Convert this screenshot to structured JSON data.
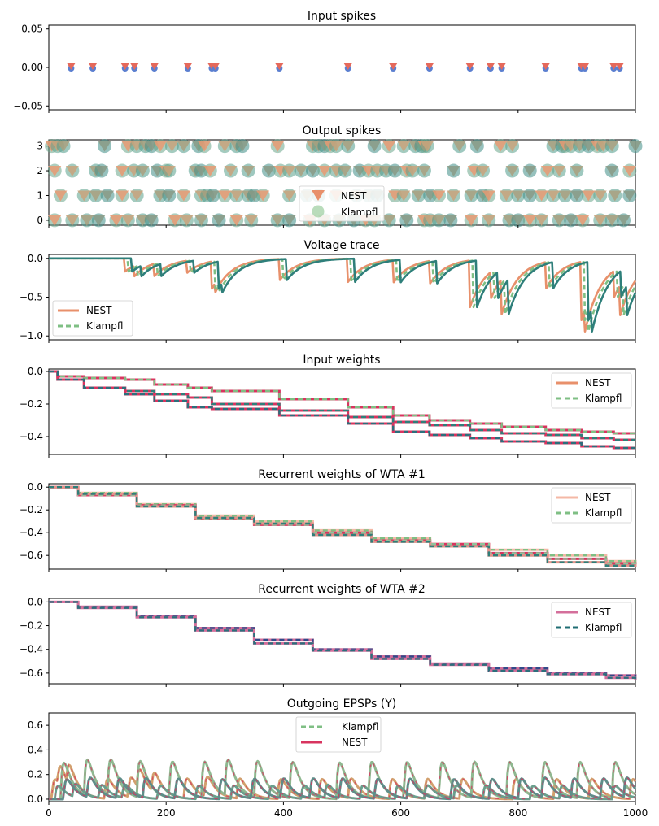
{
  "x_range": [
    0,
    1000
  ],
  "x_ticks": [
    0,
    200,
    400,
    600,
    800,
    1000
  ],
  "colors": {
    "nest_orange": "#e8906b",
    "klampfl_green": "#7fbf84",
    "teal": "#2e7f7a",
    "dark_teal": "#2b6f7c",
    "spike_red": "#e5695b",
    "spike_blue": "#5b7fd0",
    "pink": "#f4b8a6",
    "mauve": "#d46f9b",
    "crimson": "#d8345f",
    "navy": "#304a8a",
    "sage": "#8fc49b"
  },
  "chart_data": [
    {
      "id": "input_spikes",
      "type": "scatter",
      "title": "Input spikes",
      "ylim": [
        -0.055,
        0.055
      ],
      "yticks": [
        0.05,
        0.0,
        -0.05
      ],
      "ytick_labels": [
        "0.05",
        "0.00",
        "−0.05"
      ],
      "series": [
        {
          "x": [
            38,
            75,
            130,
            146,
            180,
            237,
            278,
            284,
            393,
            510,
            587,
            649,
            718,
            753,
            772,
            847,
            908,
            914,
            963,
            973
          ],
          "y": 0
        }
      ]
    },
    {
      "id": "output_spikes",
      "type": "scatter",
      "title": "Output spikes",
      "ylim": [
        -0.2,
        3.25
      ],
      "yticks": [
        3,
        2,
        1,
        0
      ],
      "ytick_labels": [
        "3",
        "2",
        "1",
        "0"
      ],
      "legend": {
        "entries": [
          "NEST",
          "Klampfl"
        ],
        "placement": "center"
      },
      "rows": [
        {
          "unit": 3,
          "x": [
            5,
            15,
            25,
            95,
            135,
            150,
            165,
            175,
            190,
            210,
            230,
            255,
            265,
            300,
            320,
            330,
            390,
            450,
            460,
            470,
            480,
            490,
            510,
            555,
            580,
            605,
            625,
            635,
            640,
            645,
            700,
            730,
            770,
            790,
            860,
            875,
            880,
            890,
            905,
            920,
            935,
            945,
            960,
            1000
          ]
        },
        {
          "unit": 2,
          "x": [
            10,
            40,
            80,
            90,
            125,
            145,
            160,
            185,
            200,
            205,
            250,
            260,
            275,
            310,
            340,
            375,
            395,
            410,
            430,
            450,
            470,
            490,
            505,
            530,
            545,
            560,
            575,
            590,
            610,
            620,
            640,
            690,
            725,
            740,
            790,
            820,
            850,
            870,
            900,
            960,
            990
          ]
        },
        {
          "unit": 1,
          "x": [
            20,
            60,
            80,
            100,
            125,
            150,
            190,
            205,
            230,
            260,
            270,
            280,
            300,
            320,
            340,
            350,
            365,
            410,
            440,
            460,
            490,
            525,
            545,
            560,
            590,
            605,
            630,
            650,
            665,
            690,
            720,
            740,
            750,
            780,
            800,
            820,
            840,
            860,
            880,
            900,
            920,
            940,
            965,
            990
          ]
        },
        {
          "unit": 0,
          "x": [
            10,
            40,
            65,
            85,
            115,
            135,
            160,
            175,
            215,
            235,
            260,
            290,
            320,
            345,
            390,
            410,
            445,
            470,
            495,
            520,
            540,
            555,
            580,
            610,
            640,
            650,
            665,
            685,
            720,
            750,
            785,
            800,
            820,
            840,
            870,
            890,
            910,
            940,
            960,
            980
          ]
        }
      ]
    },
    {
      "id": "voltage_trace",
      "type": "line",
      "title": "Voltage trace",
      "ylim": [
        -1.05,
        0.05
      ],
      "yticks": [
        0.0,
        -0.5,
        -1.0
      ],
      "ytick_labels": [
        "0.0",
        "−0.5",
        "−1.0"
      ],
      "legend": {
        "entries": [
          "NEST",
          "Klampfl"
        ],
        "placement": "lower-left"
      },
      "events": [
        {
          "x": 130,
          "a": -0.17
        },
        {
          "x": 145,
          "a": -0.14
        },
        {
          "x": 180,
          "a": -0.16
        },
        {
          "x": 235,
          "a": -0.16
        },
        {
          "x": 278,
          "a": -0.35
        },
        {
          "x": 284,
          "a": -0.12
        },
        {
          "x": 393,
          "a": -0.28
        },
        {
          "x": 510,
          "a": -0.3
        },
        {
          "x": 587,
          "a": -0.3
        },
        {
          "x": 649,
          "a": -0.3
        },
        {
          "x": 718,
          "a": -0.6
        },
        {
          "x": 753,
          "a": -0.35
        },
        {
          "x": 772,
          "a": -0.45
        },
        {
          "x": 847,
          "a": -0.35
        },
        {
          "x": 908,
          "a": -0.75
        },
        {
          "x": 914,
          "a": -0.3
        },
        {
          "x": 963,
          "a": -0.35
        },
        {
          "x": 973,
          "a": -0.4
        }
      ],
      "series_offsets": [
        0,
        6,
        12
      ]
    },
    {
      "id": "input_weights",
      "type": "line",
      "title": "Input weights",
      "ylim": [
        -0.51,
        0.015
      ],
      "yticks": [
        0.0,
        -0.2,
        -0.4
      ],
      "ytick_labels": [
        "0.0",
        "−0.2",
        "−0.4"
      ],
      "legend": {
        "entries": [
          "NEST",
          "Klampfl"
        ],
        "placement": "upper-right"
      },
      "series": [
        {
          "name": "w1",
          "x": [
            0,
            15,
            60,
            130,
            180,
            237,
            278,
            393,
            510,
            587,
            649,
            718,
            772,
            847,
            908,
            963,
            1000
          ],
          "y": [
            0,
            -0.03,
            -0.04,
            -0.05,
            -0.08,
            -0.1,
            -0.12,
            -0.17,
            -0.22,
            -0.27,
            -0.3,
            -0.32,
            -0.34,
            -0.36,
            -0.37,
            -0.38,
            -0.38
          ]
        },
        {
          "name": "w2",
          "x": [
            0,
            15,
            60,
            130,
            180,
            237,
            278,
            393,
            510,
            587,
            649,
            718,
            772,
            847,
            908,
            963,
            1000
          ],
          "y": [
            0,
            -0.05,
            -0.1,
            -0.12,
            -0.14,
            -0.16,
            -0.2,
            -0.24,
            -0.28,
            -0.31,
            -0.33,
            -0.36,
            -0.38,
            -0.39,
            -0.41,
            -0.42,
            -0.42
          ]
        },
        {
          "name": "w3",
          "x": [
            0,
            15,
            60,
            130,
            180,
            237,
            278,
            393,
            510,
            587,
            649,
            718,
            772,
            847,
            908,
            963,
            1000
          ],
          "y": [
            0,
            -0.05,
            -0.1,
            -0.14,
            -0.18,
            -0.22,
            -0.23,
            -0.27,
            -0.32,
            -0.37,
            -0.39,
            -0.41,
            -0.43,
            -0.44,
            -0.46,
            -0.47,
            -0.47
          ]
        }
      ]
    },
    {
      "id": "recurrent_weights_wta1",
      "type": "line",
      "title": "Recurrent weights of WTA #1",
      "ylim": [
        -0.72,
        0.03
      ],
      "yticks": [
        0.0,
        -0.2,
        -0.4,
        -0.6
      ],
      "ytick_labels": [
        "0.0",
        "−0.2",
        "−0.4",
        "−0.6"
      ],
      "legend": {
        "entries": [
          "NEST",
          "Klampfl"
        ],
        "placement": "upper-right"
      },
      "series": [
        {
          "name": "a",
          "x": [
            0,
            50,
            150,
            250,
            350,
            450,
            550,
            650,
            750,
            850,
            950,
            1000
          ],
          "y": [
            0,
            -0.05,
            -0.15,
            -0.25,
            -0.3,
            -0.38,
            -0.45,
            -0.5,
            -0.55,
            -0.6,
            -0.65,
            -0.66
          ]
        },
        {
          "name": "b",
          "x": [
            0,
            50,
            150,
            250,
            350,
            450,
            550,
            650,
            750,
            850,
            950,
            1000
          ],
          "y": [
            0,
            -0.07,
            -0.16,
            -0.28,
            -0.33,
            -0.4,
            -0.47,
            -0.5,
            -0.58,
            -0.63,
            -0.67,
            -0.68
          ]
        },
        {
          "name": "c",
          "x": [
            0,
            50,
            150,
            250,
            350,
            450,
            550,
            650,
            750,
            850,
            950,
            1000
          ],
          "y": [
            0,
            -0.06,
            -0.17,
            -0.27,
            -0.32,
            -0.42,
            -0.48,
            -0.52,
            -0.6,
            -0.66,
            -0.69,
            -0.7
          ]
        }
      ]
    },
    {
      "id": "recurrent_weights_wta2",
      "type": "line",
      "title": "Recurrent weights of WTA #2",
      "ylim": [
        -0.69,
        0.03
      ],
      "yticks": [
        0.0,
        -0.2,
        -0.4,
        -0.6
      ],
      "ytick_labels": [
        "0.0",
        "−0.2",
        "−0.4",
        "−0.6"
      ],
      "legend": {
        "entries": [
          "NEST",
          "Klampfl"
        ],
        "placement": "upper-right"
      },
      "series": [
        {
          "name": "a",
          "x": [
            0,
            50,
            150,
            250,
            350,
            450,
            550,
            650,
            750,
            850,
            950,
            1000
          ],
          "y": [
            0,
            -0.04,
            -0.12,
            -0.22,
            -0.32,
            -0.4,
            -0.46,
            -0.52,
            -0.56,
            -0.6,
            -0.62,
            -0.63
          ]
        },
        {
          "name": "b",
          "x": [
            0,
            50,
            150,
            250,
            350,
            450,
            550,
            650,
            750,
            850,
            950,
            1000
          ],
          "y": [
            0,
            -0.05,
            -0.13,
            -0.24,
            -0.35,
            -0.41,
            -0.48,
            -0.53,
            -0.58,
            -0.61,
            -0.64,
            -0.66
          ]
        }
      ]
    },
    {
      "id": "outgoing_epsps",
      "type": "line",
      "title": "Outgoing EPSPs (Y)",
      "ylim": [
        -0.02,
        0.7
      ],
      "yticks": [
        0.6,
        0.4,
        0.2,
        0.0
      ],
      "ytick_labels": [
        "0.6",
        "0.4",
        "0.2",
        "0.0"
      ],
      "legend": {
        "entries": [
          "Klampfl",
          "NEST"
        ],
        "placement": "upper-center"
      },
      "spike_times": [
        [
          5,
          15,
          30,
          95,
          135,
          150,
          175,
          230,
          265,
          320,
          390,
          460,
          510,
          580,
          640,
          700,
          790,
          860,
          920,
          990
        ],
        [
          20,
          60,
          100,
          150,
          205,
          260,
          300,
          350,
          410,
          490,
          545,
          605,
          665,
          720,
          780,
          840,
          900,
          960
        ],
        [
          10,
          40,
          85,
          125,
          185,
          250,
          310,
          375,
          430,
          470,
          530,
          590,
          640,
          690,
          740,
          820,
          870,
          960
        ],
        [
          25,
          65,
          115,
          160,
          215,
          290,
          345,
          395,
          445,
          495,
          555,
          610,
          685,
          750,
          800,
          840,
          890,
          940,
          980
        ]
      ],
      "amplitude_profile": [
        0.3,
        0.55,
        0.2,
        0.3
      ]
    }
  ]
}
